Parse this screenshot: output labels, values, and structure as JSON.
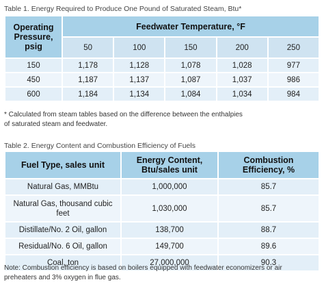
{
  "table1": {
    "caption": "Table 1. Energy Required to Produce One Pound of Saturated Steam, Btu*",
    "pressure_header": [
      "Operating",
      "Pressure,",
      "psig"
    ],
    "temp_header": "Feedwater Temperature, °F",
    "temps": [
      "50",
      "100",
      "150",
      "200",
      "250"
    ],
    "rows": [
      {
        "pressure": "150",
        "values": [
          "1,178",
          "1,128",
          "1,078",
          "1,028",
          "977"
        ]
      },
      {
        "pressure": "450",
        "values": [
          "1,187",
          "1,137",
          "1,087",
          "1,037",
          "986"
        ]
      },
      {
        "pressure": "600",
        "values": [
          "1,184",
          "1,134",
          "1,084",
          "1,034",
          "984"
        ]
      }
    ],
    "footnote": [
      "* Calculated from steam tables based on the difference between the enthalpies",
      "of saturated steam and feedwater."
    ]
  },
  "table2": {
    "caption": "Table 2. Energy Content and Combustion Efficiency of Fuels",
    "headers": {
      "fuel": "Fuel Type, sales unit",
      "energy": [
        "Energy Content,",
        "Btu/sales unit"
      ],
      "efficiency": [
        "Combustion",
        "Efficiency, %"
      ]
    },
    "rows": [
      {
        "fuel": [
          "Natural Gas, MMBtu"
        ],
        "energy": "1,000,000",
        "efficiency": "85.7"
      },
      {
        "fuel": [
          "Natural Gas, thousand cubic",
          "feet"
        ],
        "energy": "1,030,000",
        "efficiency": "85.7"
      },
      {
        "fuel": [
          "Distillate/No. 2 Oil, gallon"
        ],
        "energy": "138,700",
        "efficiency": "88.7"
      },
      {
        "fuel": [
          "Residual/No. 6 Oil, gallon"
        ],
        "energy": "149,700",
        "efficiency": "89.6"
      },
      {
        "fuel": [
          "Coal, ton"
        ],
        "energy": "27,000,000",
        "efficiency": "90.3"
      }
    ],
    "note": [
      "Note: Combustion efficiency is based on boilers equipped with feedwater economizers or air",
      "preheaters and 3% oxygen in flue gas."
    ]
  }
}
